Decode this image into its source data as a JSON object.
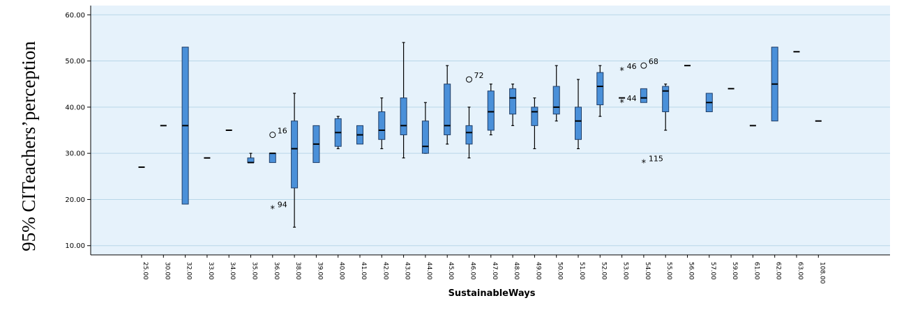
{
  "chart_data": {
    "type": "boxplot",
    "xlabel": "SustainableWays",
    "ylabel": "95% CITeachers’perception",
    "ylim": [
      8,
      62
    ],
    "yticks": [
      10,
      20,
      30,
      40,
      50,
      60
    ],
    "ytick_labels": [
      "10.00",
      "20.00",
      "30.00",
      "40.00",
      "50.00",
      "60.00"
    ],
    "grid": true,
    "colors": {
      "box": "#4a90d9",
      "plot_bg": "#e6f2fb",
      "grid": "#b8d6e8"
    },
    "categories": [
      "25.00",
      "30.00",
      "32.00",
      "33.00",
      "34.00",
      "35.00",
      "36.00",
      "38.00",
      "39.00",
      "40.00",
      "41.00",
      "42.00",
      "43.00",
      "44.00",
      "45.00",
      "46.00",
      "47.00",
      "48.00",
      "49.00",
      "50.00",
      "51.00",
      "52.00",
      "53.00",
      "54.00",
      "55.00",
      "56.00",
      "57.00",
      "59.00",
      "61.00",
      "62.00",
      "63.00",
      "108.00"
    ],
    "boxes": [
      {
        "category": "25.00",
        "min": 27,
        "q1": 27,
        "median": 27,
        "q3": 27,
        "max": 27
      },
      {
        "category": "30.00",
        "min": 36,
        "q1": 36,
        "median": 36,
        "q3": 36,
        "max": 36
      },
      {
        "category": "32.00",
        "min": 19,
        "q1": 19,
        "median": 36,
        "q3": 53,
        "max": 53
      },
      {
        "category": "33.00",
        "min": 29,
        "q1": 29,
        "median": 29,
        "q3": 29,
        "max": 29
      },
      {
        "category": "34.00",
        "min": 35,
        "q1": 35,
        "median": 35,
        "q3": 35,
        "max": 35
      },
      {
        "category": "35.00",
        "min": 28,
        "q1": 28,
        "median": 28,
        "q3": 29,
        "max": 30
      },
      {
        "category": "36.00",
        "min": 28,
        "q1": 28,
        "median": 30,
        "q3": 30,
        "max": 30
      },
      {
        "category": "38.00",
        "min": 14,
        "q1": 22.5,
        "median": 31,
        "q3": 37,
        "max": 43
      },
      {
        "category": "39.00",
        "min": 28,
        "q1": 28,
        "median": 32,
        "q3": 36,
        "max": 36
      },
      {
        "category": "40.00",
        "min": 31,
        "q1": 31.5,
        "median": 34.5,
        "q3": 37.5,
        "max": 38
      },
      {
        "category": "41.00",
        "min": 32,
        "q1": 32,
        "median": 34,
        "q3": 36,
        "max": 36
      },
      {
        "category": "42.00",
        "min": 31,
        "q1": 33,
        "median": 35,
        "q3": 39,
        "max": 42
      },
      {
        "category": "43.00",
        "min": 29,
        "q1": 34,
        "median": 36,
        "q3": 42,
        "max": 54
      },
      {
        "category": "44.00",
        "min": 30,
        "q1": 30,
        "median": 31.5,
        "q3": 37,
        "max": 41
      },
      {
        "category": "45.00",
        "min": 32,
        "q1": 34,
        "median": 36,
        "q3": 45,
        "max": 49
      },
      {
        "category": "46.00",
        "min": 29,
        "q1": 32,
        "median": 34.5,
        "q3": 36,
        "max": 40
      },
      {
        "category": "47.00",
        "min": 34,
        "q1": 35,
        "median": 39,
        "q3": 43.5,
        "max": 45
      },
      {
        "category": "48.00",
        "min": 36,
        "q1": 38.5,
        "median": 42,
        "q3": 44,
        "max": 45
      },
      {
        "category": "49.00",
        "min": 31,
        "q1": 36,
        "median": 39,
        "q3": 40,
        "max": 42
      },
      {
        "category": "50.00",
        "min": 37,
        "q1": 38.5,
        "median": 40,
        "q3": 44.5,
        "max": 49
      },
      {
        "category": "51.00",
        "min": 31,
        "q1": 33,
        "median": 37,
        "q3": 40,
        "max": 46
      },
      {
        "category": "52.00",
        "min": 38,
        "q1": 40.5,
        "median": 44.5,
        "q3": 47.5,
        "max": 49
      },
      {
        "category": "53.00",
        "min": 42,
        "q1": 42,
        "median": 42,
        "q3": 42,
        "max": 42
      },
      {
        "category": "54.00",
        "min": 41,
        "q1": 41,
        "median": 42,
        "q3": 44,
        "max": 44
      },
      {
        "category": "55.00",
        "min": 35,
        "q1": 39,
        "median": 43.5,
        "q3": 44.5,
        "max": 45
      },
      {
        "category": "56.00",
        "min": 49,
        "q1": 49,
        "median": 49,
        "q3": 49,
        "max": 49
      },
      {
        "category": "57.00",
        "min": 39,
        "q1": 39,
        "median": 41,
        "q3": 43,
        "max": 43
      },
      {
        "category": "59.00",
        "min": 44,
        "q1": 44,
        "median": 44,
        "q3": 44,
        "max": 44
      },
      {
        "category": "61.00",
        "min": 36,
        "q1": 36,
        "median": 36,
        "q3": 36,
        "max": 36
      },
      {
        "category": "62.00",
        "min": 37,
        "q1": 37,
        "median": 45,
        "q3": 53,
        "max": 53
      },
      {
        "category": "63.00",
        "min": 52,
        "q1": 52,
        "median": 52,
        "q3": 52,
        "max": 52
      },
      {
        "category": "108.00",
        "min": 37,
        "q1": 37,
        "median": 37,
        "q3": 37,
        "max": 37
      }
    ],
    "outliers": [
      {
        "category": "36.00",
        "value": 34,
        "marker": "circle",
        "label": "16"
      },
      {
        "category": "36.00",
        "value": 18,
        "marker": "star",
        "label": "94"
      },
      {
        "category": "46.00",
        "value": 46,
        "marker": "circle",
        "label": "72"
      },
      {
        "category": "53.00",
        "value": 48,
        "marker": "star",
        "label": "46"
      },
      {
        "category": "53.00",
        "value": 41,
        "marker": "star",
        "label": "44"
      },
      {
        "category": "54.00",
        "value": 49,
        "marker": "circle",
        "label": "68"
      },
      {
        "category": "54.00",
        "value": 28,
        "marker": "star",
        "label": "115"
      }
    ]
  }
}
